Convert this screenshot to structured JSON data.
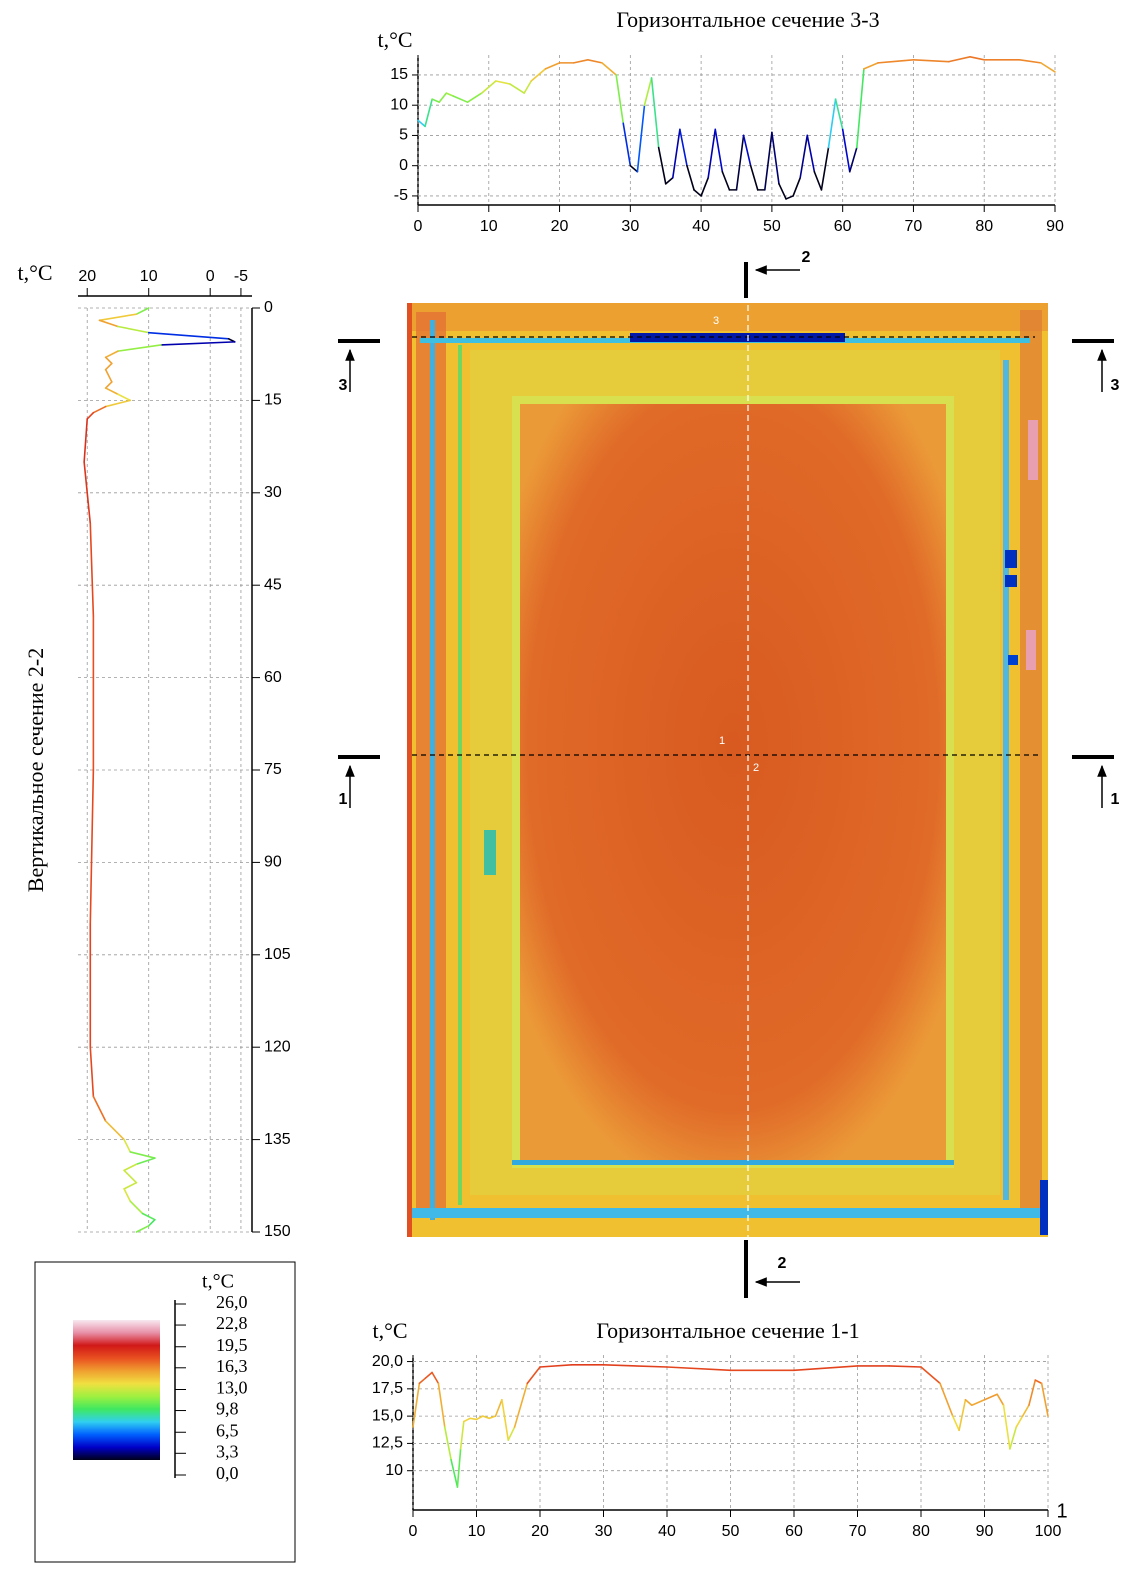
{
  "chart_data": [
    {
      "type": "line",
      "orientation": "horizontal",
      "title": "Горизонтальное сечение 3-3",
      "y_label": "t,°C",
      "x": [
        0,
        1,
        2,
        3,
        4,
        5,
        7,
        9,
        11,
        13,
        15,
        16,
        18,
        20,
        22,
        24,
        26,
        28,
        29,
        30,
        31,
        32,
        33,
        34,
        35,
        36,
        37,
        38,
        39,
        40,
        41,
        42,
        43,
        44,
        45,
        46,
        47,
        48,
        49,
        50,
        51,
        52,
        53,
        54,
        55,
        56,
        57,
        58,
        59,
        60,
        61,
        62,
        63,
        65,
        70,
        75,
        78,
        80,
        85,
        88,
        90
      ],
      "values": [
        7.5,
        6.5,
        11,
        10.5,
        12,
        11.5,
        10.5,
        12,
        14,
        13.5,
        12,
        14,
        16,
        17,
        17,
        17.5,
        17,
        15,
        7,
        0,
        -1,
        10,
        14.5,
        3,
        -3,
        -2,
        6,
        0,
        -4,
        -5,
        -2,
        6,
        -1,
        -4,
        -4,
        5,
        0,
        -4,
        -4,
        5.5,
        -3,
        -5.5,
        -5,
        -2,
        5,
        -1,
        -4,
        3,
        11,
        6,
        -1,
        3,
        16,
        17,
        17.5,
        17.2,
        18,
        17.5,
        17.5,
        17,
        15.5
      ],
      "xlim": [
        0,
        90
      ],
      "xticks": [
        0,
        10,
        20,
        30,
        40,
        50,
        60,
        70,
        80,
        90
      ],
      "ylim": [
        -6.5,
        18.3
      ],
      "yticks": [
        -5,
        0,
        5,
        10,
        15
      ],
      "grid": true
    },
    {
      "type": "line",
      "orientation": "vertical",
      "title": "Вертикальное сечение 2-2",
      "y_label": "t,°C",
      "x": [
        0,
        1,
        2,
        3,
        4,
        5,
        5.5,
        6,
        7,
        8,
        9,
        10,
        12,
        13,
        14,
        15,
        16,
        17,
        18,
        25,
        35,
        50,
        75,
        100,
        120,
        128,
        132,
        135,
        137,
        138,
        139,
        140,
        142,
        143,
        145,
        147,
        148,
        149,
        150
      ],
      "values": [
        10,
        12,
        18,
        15,
        10,
        -3,
        -4,
        8,
        15,
        17,
        16,
        17,
        16,
        17,
        15,
        13,
        17,
        19,
        20,
        20.5,
        19.5,
        19,
        19,
        19.5,
        19.5,
        19,
        17,
        14,
        13,
        9,
        12,
        14,
        12,
        14,
        13,
        11,
        9,
        10,
        12
      ],
      "xlim": [
        0,
        150
      ],
      "xticks": [
        0,
        15,
        30,
        45,
        60,
        75,
        90,
        105,
        120,
        135,
        150
      ],
      "ylim": [
        21.5,
        -6.8
      ],
      "yticks": [
        20,
        10,
        0,
        -5
      ],
      "grid": true
    },
    {
      "type": "line",
      "orientation": "horizontal",
      "title": "Горизонтальное сечение 1-1",
      "y_label": "t,°C",
      "annotation": "1",
      "x": [
        0,
        1,
        2,
        3,
        4,
        5,
        6,
        7,
        7.5,
        8,
        9,
        10,
        11,
        12,
        13,
        14,
        15,
        16,
        18,
        20,
        25,
        30,
        40,
        50,
        60,
        70,
        75,
        80,
        83,
        85,
        86,
        87,
        88,
        90,
        92,
        93,
        94,
        95,
        96,
        97,
        98,
        99,
        100
      ],
      "values": [
        14,
        18,
        18.5,
        19,
        18,
        14,
        11,
        8.5,
        12,
        14.5,
        14.8,
        14.7,
        15,
        14.8,
        15,
        16.5,
        12.8,
        14,
        18,
        19.5,
        19.7,
        19.7,
        19.5,
        19.2,
        19.2,
        19.6,
        19.6,
        19.5,
        18,
        15,
        13.7,
        16.5,
        16,
        16.5,
        17,
        16,
        12,
        14,
        15,
        16,
        18.3,
        18,
        15
      ],
      "xlim": [
        0,
        100
      ],
      "xticks": [
        0,
        10,
        20,
        30,
        40,
        50,
        60,
        70,
        80,
        90,
        100
      ],
      "ylim": [
        6.4,
        20.6
      ],
      "yticks": [
        10,
        {
          "value": 12.5,
          "label": "12,5"
        },
        {
          "value": 15,
          "label": "15,0"
        },
        {
          "value": 17.5,
          "label": "17,5"
        },
        {
          "value": 20,
          "label": "20,0"
        }
      ],
      "grid": true
    }
  ],
  "color_scale": {
    "title": "t,°C",
    "ticks": [
      {
        "value": 26,
        "label": "26,0"
      },
      {
        "value": 22.8,
        "label": "22,8"
      },
      {
        "value": 19.5,
        "label": "19,5"
      },
      {
        "value": 16.3,
        "label": "16,3"
      },
      {
        "value": 13,
        "label": "13,0"
      },
      {
        "value": 9.8,
        "label": "9,8"
      },
      {
        "value": 6.5,
        "label": "6,5"
      },
      {
        "value": 3.3,
        "label": "3,3"
      },
      {
        "value": 0,
        "label": "0,0"
      }
    ],
    "colors": [
      "#00001a",
      "#0000c8",
      "#0060ff",
      "#30d0f0",
      "#40e860",
      "#a0f040",
      "#f0e040",
      "#f0a030",
      "#e85020",
      "#d01818",
      "#e890a8",
      "#f8e8f0"
    ]
  },
  "section_labels": [
    "3",
    "3",
    "1",
    "1",
    "2",
    "2",
    "3",
    "1",
    "2"
  ]
}
